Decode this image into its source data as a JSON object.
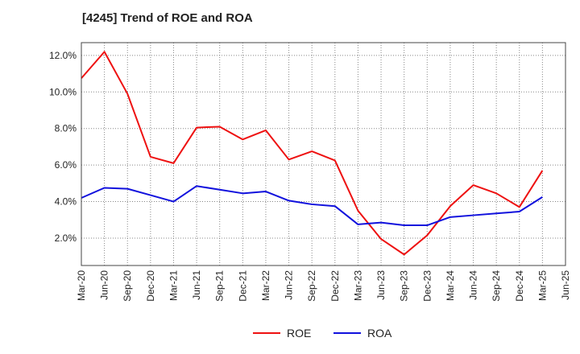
{
  "chart_data": {
    "type": "line",
    "title": "[4245]  Trend of ROE and ROA",
    "xlabel": "",
    "ylabel": "",
    "categories": [
      "Mar-20",
      "Jun-20",
      "Sep-20",
      "Dec-20",
      "Mar-21",
      "Jun-21",
      "Sep-21",
      "Dec-21",
      "Mar-22",
      "Jun-22",
      "Sep-22",
      "Dec-22",
      "Mar-23",
      "Jun-23",
      "Sep-23",
      "Dec-23",
      "Mar-24",
      "Jun-24",
      "Sep-24",
      "Dec-24",
      "Mar-25",
      "Jun-25"
    ],
    "ylim": [
      0.5,
      12.7
    ],
    "yticks": [
      2.0,
      4.0,
      6.0,
      8.0,
      10.0,
      12.0
    ],
    "ytick_labels": [
      "2.0%",
      "4.0%",
      "6.0%",
      "8.0%",
      "10.0%",
      "12.0%"
    ],
    "grid": true,
    "legend_position": "bottom",
    "series": [
      {
        "name": "ROE",
        "color": "#ee1111",
        "values": [
          10.75,
          12.2,
          9.9,
          6.45,
          6.1,
          8.05,
          8.1,
          7.4,
          7.9,
          6.3,
          6.75,
          6.25,
          3.5,
          1.95,
          1.1,
          2.15,
          3.75,
          4.9,
          4.45,
          3.7,
          5.7,
          null
        ]
      },
      {
        "name": "ROA",
        "color": "#1111dd",
        "values": [
          4.2,
          4.75,
          4.7,
          4.35,
          4.0,
          4.85,
          4.65,
          4.45,
          4.55,
          4.05,
          3.85,
          3.75,
          2.75,
          2.85,
          2.7,
          2.7,
          3.15,
          3.25,
          3.35,
          3.45,
          4.25,
          null
        ]
      }
    ]
  }
}
